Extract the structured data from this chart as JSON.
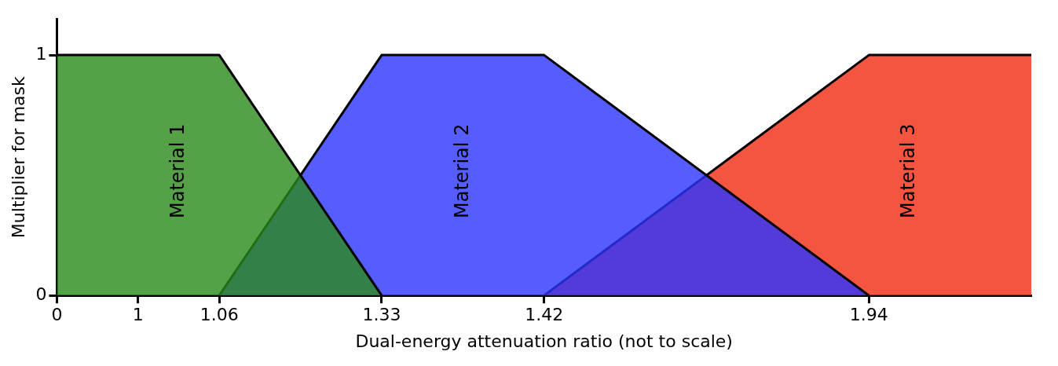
{
  "chart_data": {
    "type": "area",
    "xlabel": "Dual-energy attenuation ratio (not to scale)",
    "ylabel": "Multiplier for mask",
    "categories": [
      "0",
      "1",
      "1.06",
      null,
      "1.33",
      null,
      "1.42",
      null,
      null,
      null,
      "1.94",
      null,
      null
    ],
    "series": [
      {
        "name": "Material 1",
        "color": "#2a8a1a",
        "values": [
          1,
          1,
          1,
          null,
          0,
          null,
          null,
          null,
          null,
          null,
          null,
          null,
          null
        ]
      },
      {
        "name": "Material 2",
        "color": "#2b35ff",
        "values": [
          null,
          null,
          0,
          null,
          1,
          null,
          1,
          null,
          null,
          null,
          0,
          null,
          null
        ]
      },
      {
        "name": "Material 3",
        "color": "#f02a10",
        "values": [
          null,
          null,
          null,
          null,
          null,
          null,
          0,
          null,
          null,
          null,
          1,
          null,
          1
        ]
      }
    ],
    "ylim": [
      0,
      1.15
    ],
    "yticks": [
      0,
      1
    ],
    "grid": false,
    "legend": false
  }
}
